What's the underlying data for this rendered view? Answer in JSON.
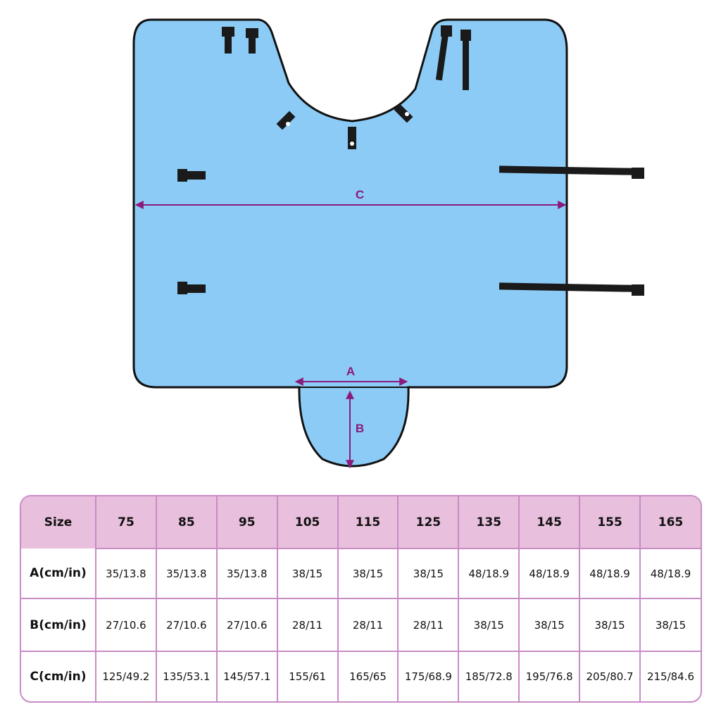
{
  "diagram": {
    "labels": {
      "a": "A",
      "b": "B",
      "c": "C"
    },
    "colors": {
      "fabric": "#8ccbf5",
      "edge": "#111111",
      "arrow": "#8b1a7a",
      "straps": "#1a1a1a"
    }
  },
  "size_table": {
    "header_label": "Size",
    "sizes": [
      "75",
      "85",
      "95",
      "105",
      "115",
      "125",
      "135",
      "145",
      "155",
      "165"
    ],
    "rows": [
      {
        "label": "A(cm/in)",
        "values": [
          "35/13.8",
          "35/13.8",
          "35/13.8",
          "38/15",
          "38/15",
          "38/15",
          "48/18.9",
          "48/18.9",
          "48/18.9",
          "48/18.9"
        ]
      },
      {
        "label": "B(cm/in)",
        "values": [
          "27/10.6",
          "27/10.6",
          "27/10.6",
          "28/11",
          "28/11",
          "28/11",
          "38/15",
          "38/15",
          "38/15",
          "38/15"
        ]
      },
      {
        "label": "C(cm/in)",
        "values": [
          "125/49.2",
          "135/53.1",
          "145/57.1",
          "155/61",
          "165/65",
          "175/68.9",
          "185/72.8",
          "195/76.8",
          "205/80.7",
          "215/84.6"
        ]
      }
    ],
    "colors": {
      "border": "#c98bc6",
      "header_fill": "#e8bfdc"
    }
  }
}
